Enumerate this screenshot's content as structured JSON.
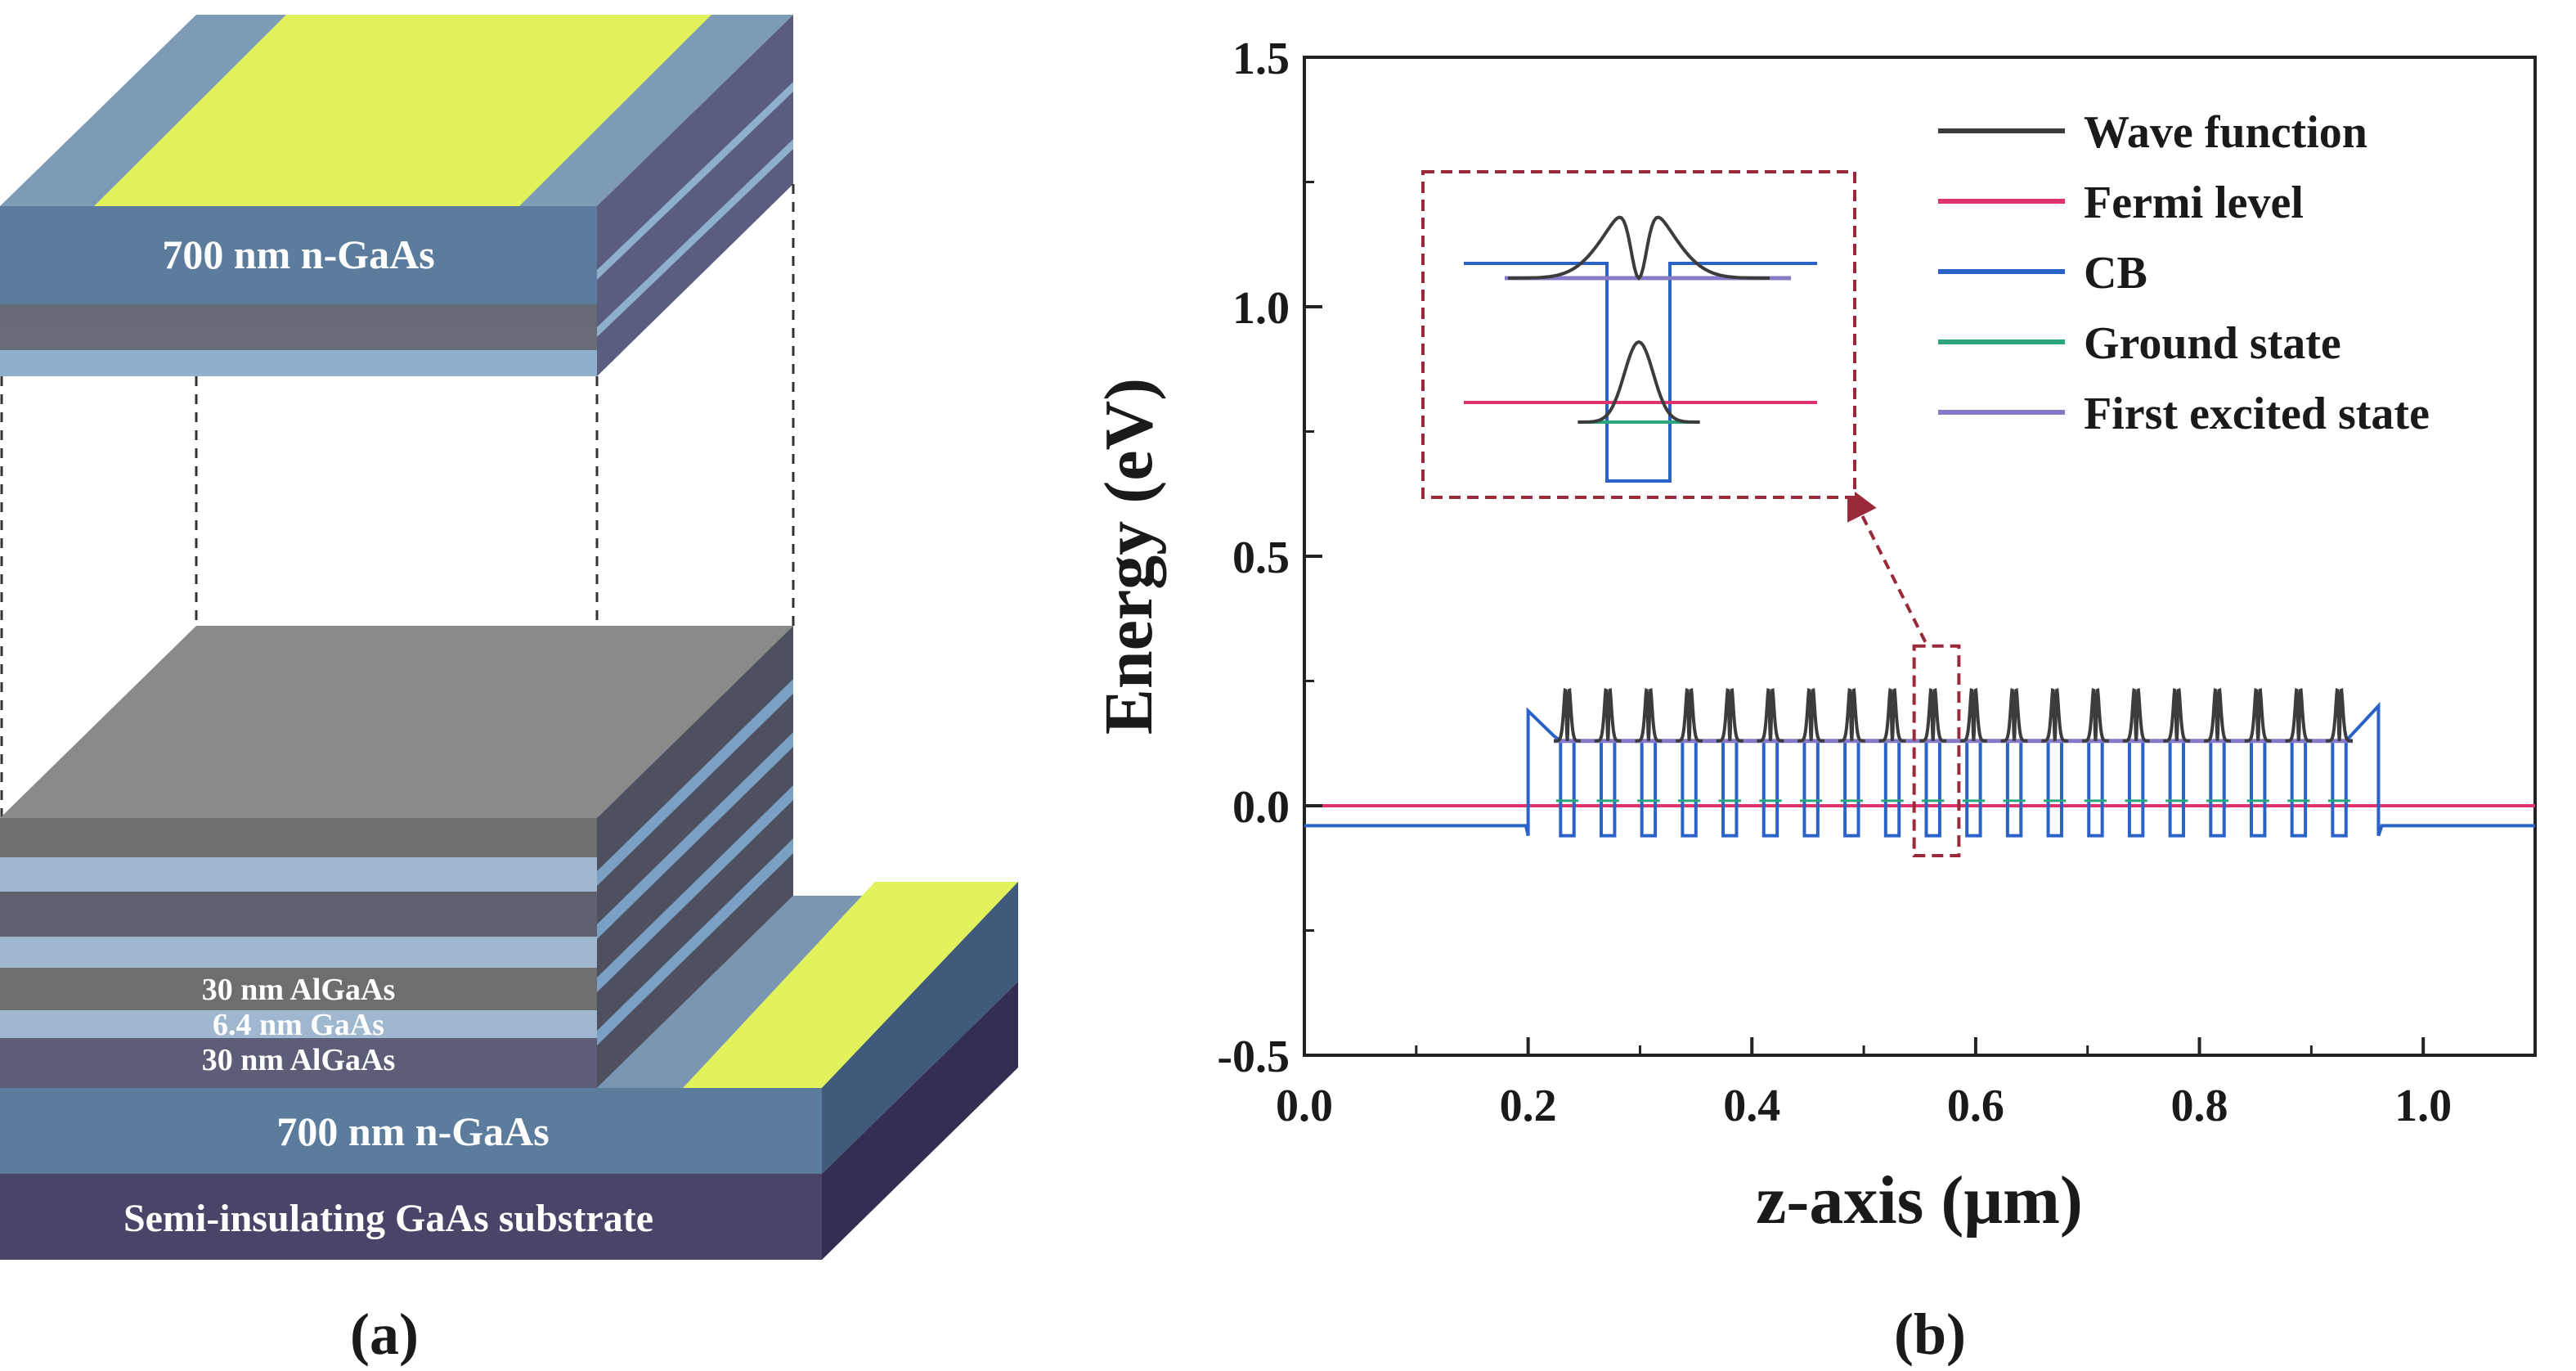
{
  "panel_a": {
    "caption": "(a)",
    "layers": {
      "top_contact": "700 nm n-GaAs",
      "barrier_upper": "30 nm AlGaAs",
      "well": "6.4 nm GaAs",
      "barrier_lower": "30 nm AlGaAs",
      "bottom_contact": "700 nm n-GaAs",
      "substrate": "Semi-insulating GaAs substrate"
    },
    "colors": {
      "gaas_blue": "#5b7c9c",
      "algaas_gray": "#6e6e6e",
      "well_light": "#9fb8d0",
      "substrate": "#4a4468",
      "contact": "#e2f25c"
    }
  },
  "panel_b": {
    "caption": "(b)",
    "chart_data": {
      "type": "line",
      "xlabel": "z-axis (μm)",
      "ylabel": "Energy (eV)",
      "xlim": [
        0.0,
        1.1
      ],
      "ylim": [
        -0.5,
        1.5
      ],
      "xticks": [
        "0.0",
        "0.2",
        "0.4",
        "0.6",
        "0.8",
        "1.0"
      ],
      "xtick_values": [
        0.0,
        0.2,
        0.4,
        0.6,
        0.8,
        1.0
      ],
      "yticks": [
        "-0.5",
        "0.0",
        "0.5",
        "1.0",
        "1.5"
      ],
      "ytick_values": [
        -0.5,
        0.0,
        0.5,
        1.0,
        1.5
      ],
      "series": [
        {
          "name": "Wave function",
          "color": "#3c3c3c",
          "description": "peaks of approx 0.28 eV above each well, baseline 0.13 eV"
        },
        {
          "name": "Fermi level",
          "color": "#e0336b",
          "value": 0.0
        },
        {
          "name": "CB",
          "color": "#2a62c8",
          "outside_value": -0.04,
          "barrier_top_left": 0.19,
          "barrier_top_right": 0.2,
          "barrier_mid": 0.13,
          "well_bottom": -0.06,
          "region": [
            0.2,
            0.96
          ]
        },
        {
          "name": "Ground state",
          "color": "#2aa67c"
        },
        {
          "name": "First excited state",
          "color": "#8878c8",
          "value": 0.13
        }
      ],
      "wells": {
        "count": 20,
        "start": 0.235,
        "end": 0.925
      },
      "highlight_box": {
        "x": [
          0.545,
          0.585
        ],
        "y": [
          -0.1,
          0.32
        ]
      }
    },
    "legend": [
      {
        "label": "Wave function",
        "color": "#3c3c3c"
      },
      {
        "label": "Fermi level",
        "color": "#e0336b"
      },
      {
        "label": "CB",
        "color": "#2a62c8"
      },
      {
        "label": "Ground state",
        "color": "#2aa67c"
      },
      {
        "label": "First excited state",
        "color": "#8878c8"
      }
    ]
  }
}
